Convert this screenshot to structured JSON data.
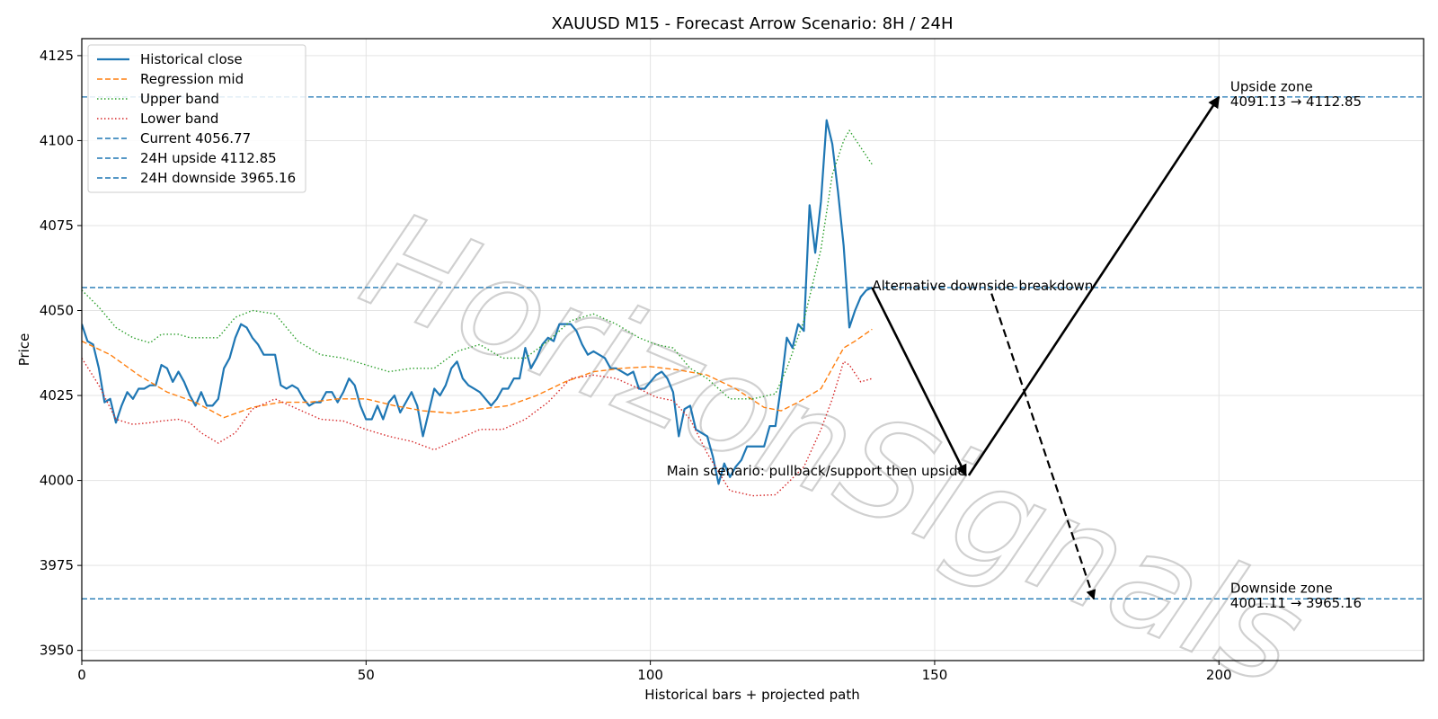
{
  "chart_data": {
    "type": "line",
    "title": "XAUUSD M15 - Forecast Arrow Scenario: 8H / 24H",
    "xlabel": "Historical bars + projected path",
    "ylabel": "Price",
    "xlim": [
      0,
      236
    ],
    "ylim": [
      3947,
      4130
    ],
    "x_ticks": [
      0,
      50,
      100,
      150,
      200
    ],
    "y_ticks": [
      3950,
      3975,
      4000,
      4025,
      4050,
      4075,
      4100,
      4125
    ],
    "grid": true,
    "legend_position": "upper-left",
    "watermark": "HorizonSignals",
    "series": [
      {
        "name": "Historical close",
        "color": "#1f77b4",
        "style": "solid",
        "x": [
          0,
          1,
          2,
          3,
          4,
          5,
          6,
          7,
          8,
          9,
          10,
          11,
          12,
          13,
          14,
          15,
          16,
          17,
          18,
          19,
          20,
          21,
          22,
          23,
          24,
          25,
          26,
          27,
          28,
          29,
          30,
          31,
          32,
          33,
          34,
          35,
          36,
          37,
          38,
          39,
          40,
          41,
          42,
          43,
          44,
          45,
          46,
          47,
          48,
          49,
          50,
          51,
          52,
          53,
          54,
          55,
          56,
          57,
          58,
          59,
          60,
          61,
          62,
          63,
          64,
          65,
          66,
          67,
          68,
          69,
          70,
          71,
          72,
          73,
          74,
          75,
          76,
          77,
          78,
          79,
          80,
          81,
          82,
          83,
          84,
          85,
          86,
          87,
          88,
          89,
          90,
          91,
          92,
          93,
          94,
          95,
          96,
          97,
          98,
          99,
          100,
          101,
          102,
          103,
          104,
          105,
          106,
          107,
          108,
          109,
          110,
          111,
          112,
          113,
          114,
          115,
          116,
          117,
          118,
          119,
          120,
          121,
          122,
          123,
          124,
          125,
          126,
          127,
          128,
          129,
          130,
          131,
          132,
          133,
          134,
          135,
          136,
          137,
          138,
          139
        ],
        "y": [
          4046,
          4041,
          4040,
          4033,
          4023,
          4024,
          4017,
          4022,
          4026,
          4024,
          4027,
          4027,
          4028,
          4028,
          4034,
          4033,
          4029,
          4032,
          4029,
          4025,
          4022,
          4026,
          4022,
          4022,
          4024,
          4033,
          4036,
          4042,
          4046,
          4045,
          4042,
          4040,
          4037,
          4037,
          4037,
          4028,
          4027,
          4028,
          4027,
          4024,
          4022,
          4023,
          4023,
          4026,
          4026,
          4023,
          4026,
          4030,
          4028,
          4022,
          4018,
          4018,
          4022,
          4018,
          4023,
          4025,
          4020,
          4023,
          4026,
          4022,
          4013,
          4020,
          4027,
          4025,
          4028,
          4033,
          4035,
          4030,
          4028,
          4027,
          4026,
          4024,
          4022,
          4024,
          4027,
          4027,
          4030,
          4030,
          4039,
          4033,
          4036,
          4040,
          4042,
          4041,
          4046,
          4046,
          4046,
          4044,
          4040,
          4037,
          4038,
          4037,
          4036,
          4033,
          4033,
          4032,
          4031,
          4032,
          4027,
          4027,
          4029,
          4031,
          4032,
          4030,
          4026,
          4013,
          4021,
          4022,
          4015,
          4014,
          4013,
          4007,
          3999,
          4005,
          4001,
          4004,
          4006,
          4010,
          4010,
          4010,
          4010,
          4016,
          4016,
          4028,
          4042,
          4039,
          4046,
          4044,
          4081,
          4067,
          4082,
          4106,
          4099,
          4085,
          4069,
          4045,
          4050,
          4054,
          4056,
          4056.77
        ]
      },
      {
        "name": "Regression mid",
        "color": "#ff7f0e",
        "style": "dashed",
        "x": [
          0,
          5,
          10,
          15,
          20,
          25,
          30,
          35,
          40,
          45,
          50,
          55,
          60,
          65,
          70,
          75,
          80,
          85,
          90,
          95,
          100,
          105,
          110,
          115,
          120,
          123,
          126,
          128,
          130,
          132,
          134,
          136,
          139
        ],
        "y": [
          4041,
          4037,
          4031,
          4026,
          4023,
          4018.5,
          4021.5,
          4023,
          4023,
          4024,
          4024,
          4022,
          4020.5,
          4019.8,
          4021,
          4022,
          4025,
          4029,
          4032,
          4033,
          4033.5,
          4032.5,
          4031,
          4027,
          4021.5,
          4020.5,
          4023,
          4025,
          4027,
          4033,
          4039,
          4041,
          4044.5
        ]
      },
      {
        "name": "Upper band",
        "color": "#2ca02c",
        "style": "dotted",
        "x": [
          0,
          3,
          6,
          9,
          12,
          14,
          17,
          19,
          21,
          24,
          27,
          30,
          34,
          38,
          42,
          46,
          50,
          54,
          58,
          62,
          66,
          70,
          74,
          78,
          82,
          86,
          90,
          94,
          98,
          101,
          104,
          107,
          110,
          114,
          118,
          122,
          124,
          127,
          130,
          132,
          134,
          135,
          137,
          139
        ],
        "y": [
          4056,
          4051,
          4045,
          4042,
          4040.5,
          4043,
          4043,
          4042,
          4042,
          4042,
          4048,
          4050,
          4049,
          4041,
          4037,
          4036,
          4034,
          4032,
          4033,
          4033,
          4038,
          4040,
          4036,
          4036,
          4041,
          4047,
          4049,
          4046,
          4042,
          4040,
          4039,
          4033,
          4030,
          4024,
          4024,
          4025.5,
          4033,
          4047,
          4068,
          4090,
          4100,
          4103,
          4098,
          4093
        ]
      },
      {
        "name": "Lower band",
        "color": "#d62728",
        "style": "dotted",
        "x": [
          0,
          3,
          6,
          9,
          12,
          14,
          17,
          19,
          21,
          24,
          27,
          30,
          34,
          38,
          42,
          46,
          50,
          54,
          58,
          62,
          66,
          70,
          74,
          78,
          82,
          86,
          90,
          94,
          98,
          101,
          104,
          107,
          110,
          114,
          118,
          122,
          124,
          127,
          130,
          132,
          134,
          135,
          137,
          139
        ],
        "y": [
          4036,
          4028,
          4018,
          4016.5,
          4017,
          4017.5,
          4018,
          4017,
          4014,
          4011,
          4014,
          4021,
          4024,
          4021,
          4018,
          4017.5,
          4015,
          4013,
          4011.5,
          4009,
          4012,
          4015,
          4015,
          4018,
          4023,
          4030,
          4031,
          4030,
          4027,
          4024.5,
          4023.5,
          4018,
          4008,
          3997,
          3995.5,
          3995.8,
          3999,
          4004,
          4015,
          4024,
          4035,
          4034,
          4029,
          4030
        ]
      }
    ],
    "hlines": [
      {
        "name": "Current 4056.77",
        "y": 4056.77,
        "color": "#1f77b4",
        "style": "dashed"
      },
      {
        "name": "24H upside 4112.85",
        "y": 4112.85,
        "color": "#1f77b4",
        "style": "dashed"
      },
      {
        "name": "24H downside 3965.16",
        "y": 3965.16,
        "color": "#1f77b4",
        "style": "dashed"
      }
    ],
    "arrows": [
      {
        "name": "main-down",
        "from": [
          139,
          4056.77
        ],
        "to": [
          155.5,
          4001.5
        ],
        "style": "solid"
      },
      {
        "name": "main-up",
        "from": [
          156,
          4001.5
        ],
        "to": [
          200,
          4112.85
        ],
        "style": "solid"
      },
      {
        "name": "alt-down",
        "from": [
          160,
          4055
        ],
        "to": [
          178,
          3965.16
        ],
        "style": "dashed"
      }
    ],
    "annotations": [
      {
        "name": "alt-label",
        "text": "Alternative downside breakdown",
        "x": 139,
        "y": 4056,
        "anchor": "start"
      },
      {
        "name": "main-label",
        "text": "Main scenario: pullback/support then upside",
        "x": 155.5,
        "y": 4001.5,
        "anchor": "end"
      },
      {
        "name": "upside-title",
        "text": "Upside zone",
        "x": 202,
        "y": 4114.5,
        "anchor": "start"
      },
      {
        "name": "upside-range",
        "text": "4091.13 → 4112.85",
        "x": 202,
        "y": 4110.2,
        "anchor": "start"
      },
      {
        "name": "downside-title",
        "text": "Downside zone",
        "x": 202,
        "y": 3966.9,
        "anchor": "start"
      },
      {
        "name": "downside-range",
        "text": "4001.11 → 3965.16",
        "x": 202,
        "y": 3962.6,
        "anchor": "start"
      }
    ]
  }
}
